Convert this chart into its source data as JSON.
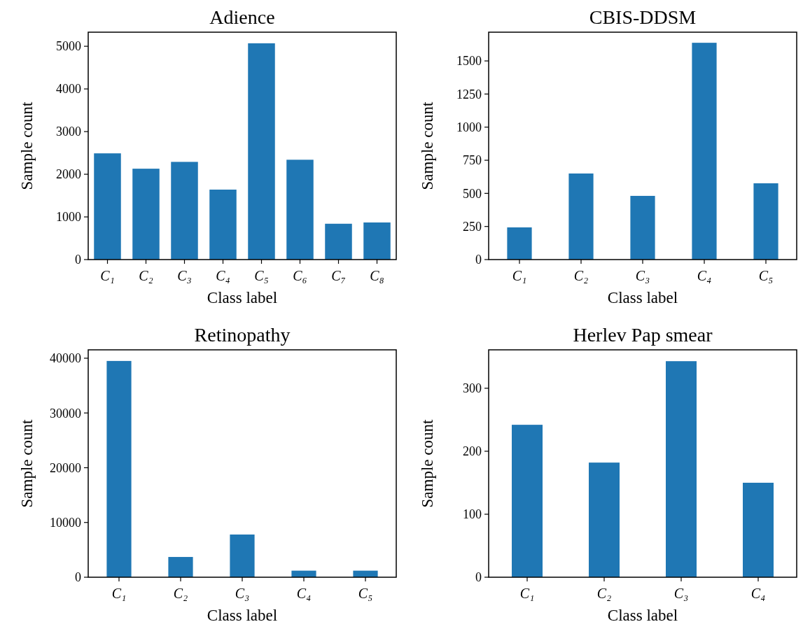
{
  "chart_data": [
    {
      "type": "bar",
      "title": "Adience",
      "xlabel": "Class label",
      "ylabel": "Sample count",
      "categories": [
        "C₁",
        "C₂",
        "C₃",
        "C₄",
        "C₅",
        "C₆",
        "C₇",
        "C₈"
      ],
      "values": [
        2490,
        2130,
        2290,
        1640,
        5070,
        2340,
        840,
        870
      ],
      "color": "#1f77b4",
      "ylim": [
        0,
        5330
      ],
      "yticks": [
        0,
        1000,
        2000,
        3000,
        4000,
        5000
      ]
    },
    {
      "type": "bar",
      "title": "CBIS-DDSM",
      "xlabel": "Class label",
      "ylabel": "Sample count",
      "categories": [
        "C₁",
        "C₂",
        "C₃",
        "C₄",
        "C₅"
      ],
      "values": [
        243,
        650,
        481,
        1637,
        576
      ],
      "color": "#1f77b4",
      "ylim": [
        0,
        1717
      ],
      "yticks": [
        0,
        250,
        500,
        750,
        1000,
        1250,
        1500
      ]
    },
    {
      "type": "bar",
      "title": "Retinopathy",
      "xlabel": "Class label",
      "ylabel": "Sample count",
      "categories": [
        "C₁",
        "C₂",
        "C₃",
        "C₄",
        "C₅"
      ],
      "values": [
        39500,
        3700,
        7800,
        1200,
        1200
      ],
      "color": "#1f77b4",
      "ylim": [
        0,
        41530
      ],
      "yticks": [
        0,
        10000,
        20000,
        30000,
        40000
      ]
    },
    {
      "type": "bar",
      "title": "Herlev Pap smear",
      "xlabel": "Class label",
      "ylabel": "Sample count",
      "categories": [
        "C₁",
        "C₂",
        "C₃",
        "C₄"
      ],
      "values": [
        242,
        182,
        343,
        150
      ],
      "color": "#1f77b4",
      "ylim": [
        0,
        361
      ],
      "yticks": [
        0,
        100,
        200,
        300
      ]
    }
  ]
}
